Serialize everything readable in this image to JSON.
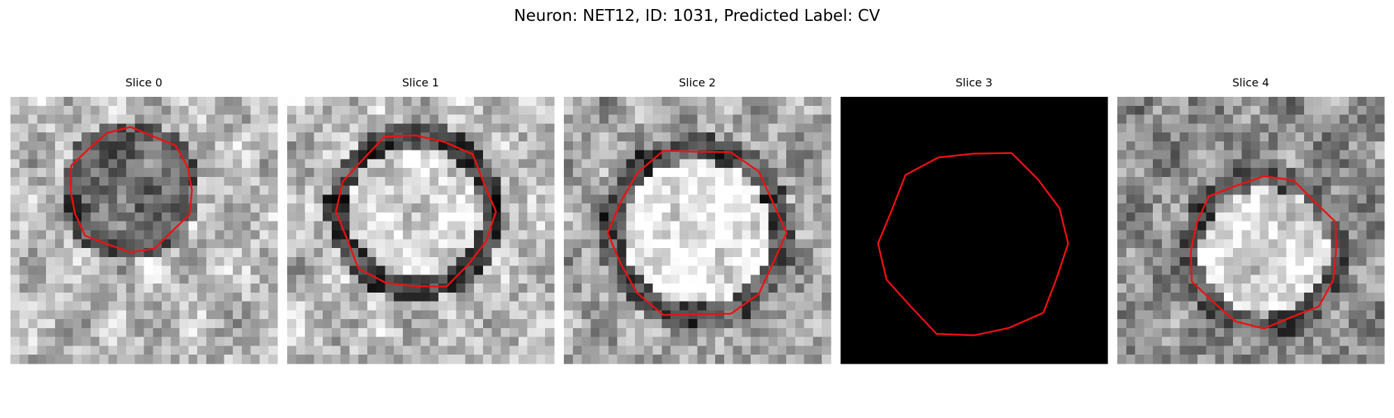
{
  "header": {
    "title": "Neuron: NET12, ID: 1031, Predicted Label: CV"
  },
  "panels": [
    {
      "title": "Slice 0"
    },
    {
      "title": "Slice 1"
    },
    {
      "title": "Slice 2"
    },
    {
      "title": "Slice 3"
    },
    {
      "title": "Slice 4"
    }
  ]
}
